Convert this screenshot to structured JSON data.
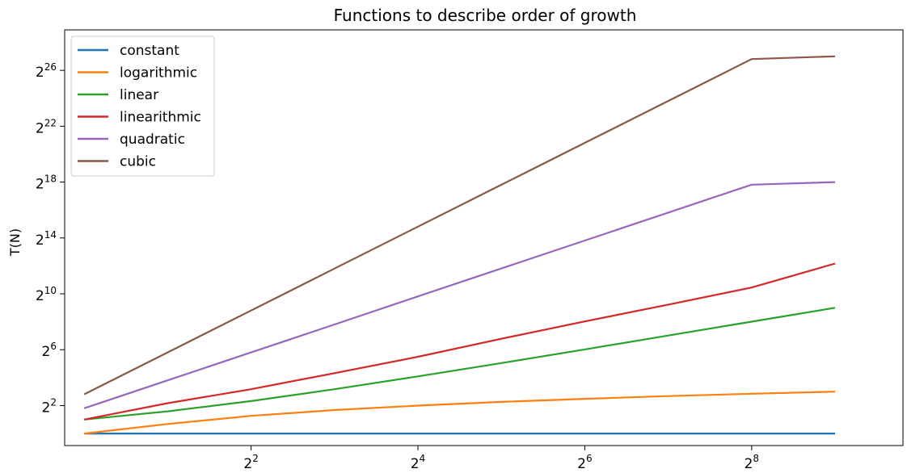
{
  "chart_data": {
    "type": "line",
    "title": "Functions to describe order of growth",
    "xlabel": "",
    "ylabel": "T(N)",
    "xscale": "log2",
    "yscale": "log2",
    "xlim": [
      0.85,
      900
    ],
    "ylim": [
      0.55,
      500000000
    ],
    "grid": false,
    "legend_placement": "top-left",
    "x": [
      1,
      2,
      4,
      8,
      16,
      32,
      64,
      128,
      256,
      512
    ],
    "x_ticks": [
      {
        "base": "2",
        "exp": "2",
        "value": 4
      },
      {
        "base": "2",
        "exp": "4",
        "value": 16
      },
      {
        "base": "2",
        "exp": "6",
        "value": 64
      },
      {
        "base": "2",
        "exp": "8",
        "value": 256
      }
    ],
    "y_ticks": [
      {
        "base": "2",
        "exp": "2",
        "value": 4
      },
      {
        "base": "2",
        "exp": "6",
        "value": 64
      },
      {
        "base": "2",
        "exp": "10",
        "value": 1024
      },
      {
        "base": "2",
        "exp": "14",
        "value": 16384
      },
      {
        "base": "2",
        "exp": "18",
        "value": 262144
      },
      {
        "base": "2",
        "exp": "22",
        "value": 4194304
      },
      {
        "base": "2",
        "exp": "26",
        "value": 67108864
      }
    ],
    "series": [
      {
        "name": "constant",
        "color": "#1f77b4",
        "values": [
          1,
          1,
          1,
          1,
          1,
          1,
          1,
          1,
          1,
          1
        ]
      },
      {
        "name": "logarithmic",
        "color": "#ff7f0e",
        "values": [
          1,
          1.6,
          2.4,
          3.2,
          4,
          4.8,
          5.6,
          6.4,
          7.2,
          8
        ]
      },
      {
        "name": "linear",
        "color": "#2ca02c",
        "values": [
          2,
          3,
          5,
          9,
          17,
          33,
          65,
          129,
          257,
          513
        ]
      },
      {
        "name": "linearithmic",
        "color": "#d62728",
        "values": [
          2,
          4.5,
          9,
          20,
          45,
          110,
          260,
          600,
          1400,
          4600
        ]
      },
      {
        "name": "quadratic",
        "color": "#9467bd",
        "values": [
          3.5,
          14,
          56,
          224,
          900,
          3600,
          14400,
          57600,
          230000,
          262144
        ]
      },
      {
        "name": "cubic",
        "color": "#8c564b",
        "values": [
          7,
          56,
          448,
          3584,
          28672,
          229376,
          1835008,
          14680064,
          117440512,
          134217728
        ]
      }
    ]
  }
}
